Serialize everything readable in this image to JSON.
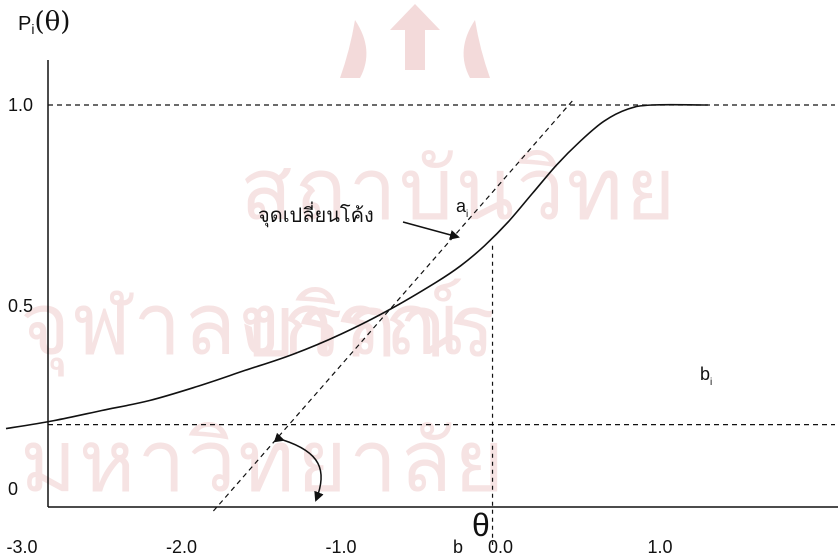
{
  "chart_data": {
    "type": "line",
    "title": "",
    "y_axis_title": {
      "main": "P",
      "subscript": "i",
      "theta": "(θ)"
    },
    "x_axis_theta": "θ",
    "x_ticks": [
      "-3.0",
      "-2.0",
      "-1.0",
      "0.0",
      "1.0"
    ],
    "x_tick_values": [
      -3.0,
      -2.0,
      -1.0,
      0.0,
      1.0
    ],
    "y_ticks": [
      "0",
      "0.5",
      "1.0"
    ],
    "y_tick_values": [
      0,
      0.5,
      1.0
    ],
    "xlim": [
      -3.15,
      1.75
    ],
    "ylim": [
      0,
      1.3
    ],
    "series": [
      {
        "x": [
          -3.1,
          -2.8,
          -2.5,
          -2.2,
          -1.9,
          -1.6,
          -1.3,
          -1.0,
          -0.7,
          -0.4,
          -0.25,
          -0.1,
          0.05,
          0.2,
          0.35,
          0.5,
          0.65,
          0.8,
          0.95,
          1.3
        ],
        "y": [
          0.195,
          0.215,
          0.24,
          0.265,
          0.3,
          0.34,
          0.38,
          0.43,
          0.49,
          0.56,
          0.6,
          0.65,
          0.71,
          0.78,
          0.85,
          0.91,
          0.96,
          0.99,
          1.0,
          1.0
        ]
      }
    ],
    "reference_lines": {
      "upper_asymptote": 1.0,
      "lower_asymptote": 0.2,
      "inflection_x": -0.05,
      "inflection_y": 0.65
    },
    "tangent_line": {
      "x": [
        -1.8,
        0.45
      ],
      "y": [
        -0.01,
        1.01
      ]
    },
    "annotations": {
      "inflection_label": "จุดเปลี่ยนโค้ง",
      "a_label": "a",
      "a_subscript": "i",
      "b_label": "b",
      "b_subscript": "i",
      "b_tick_label": "b"
    },
    "watermark": {
      "line1": "สถาบันวิทยบริการ",
      "line2": "จุฬาลงกรณ์มหาวิทยาลัย"
    },
    "colors": {
      "line": "#111111",
      "watermark": "#f6e3e3",
      "crest": "#f3dada"
    }
  }
}
